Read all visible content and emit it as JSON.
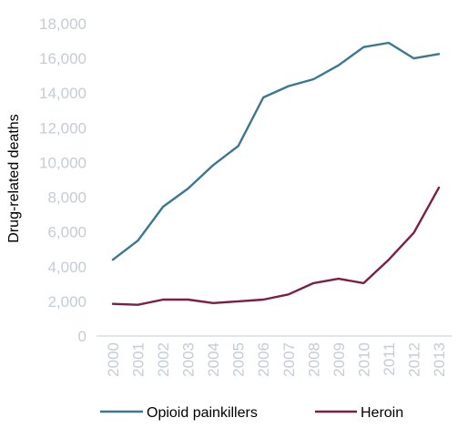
{
  "chart_data": {
    "type": "line",
    "title": "",
    "xlabel": "",
    "ylabel": "Drug-related deaths",
    "x": [
      "2000",
      "2001",
      "2002",
      "2003",
      "2004",
      "2005",
      "2006",
      "2007",
      "2008",
      "2009",
      "2010",
      "2011",
      "2012",
      "2013"
    ],
    "ylim": [
      0,
      18000
    ],
    "yticks": [
      "0",
      "2,000",
      "4,000",
      "6,000",
      "8,000",
      "10,000",
      "12,000",
      "14,000",
      "16,000",
      "18,000"
    ],
    "ytick_values": [
      0,
      2000,
      4000,
      6000,
      8000,
      10000,
      12000,
      14000,
      16000,
      18000
    ],
    "grid": false,
    "legend_position": "bottom",
    "series": [
      {
        "name": "Opioid painkillers",
        "color": "#3d7690",
        "values": [
          4400,
          5500,
          7450,
          8500,
          9850,
          10950,
          13750,
          14400,
          14800,
          15600,
          16650,
          16900,
          16000,
          16250
        ]
      },
      {
        "name": "Heroin",
        "color": "#7a1f47",
        "values": [
          1850,
          1800,
          2100,
          2100,
          1900,
          2000,
          2100,
          2400,
          3050,
          3300,
          3050,
          4400,
          5950,
          8550
        ]
      }
    ]
  }
}
